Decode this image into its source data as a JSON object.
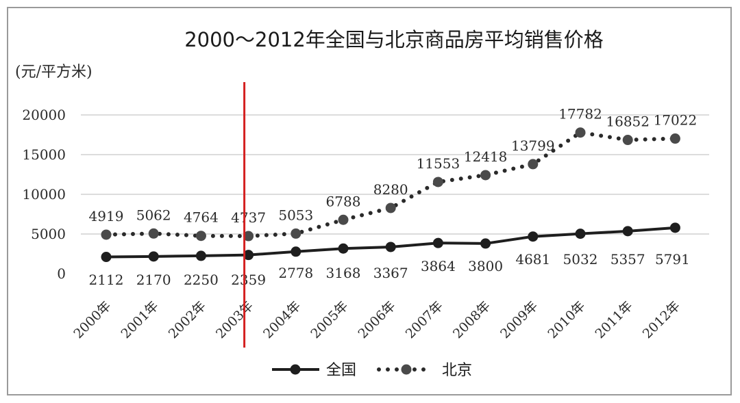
{
  "chart_data": {
    "type": "line",
    "title": "2000～2012年全国与北京商品房平均销售价格",
    "unit_label": "(元/平方米)",
    "categories": [
      "2000年",
      "2001年",
      "2002年",
      "2003年",
      "2004年",
      "2005年",
      "2006年",
      "2007年",
      "2008年",
      "2009年",
      "2010年",
      "2011年",
      "2012年"
    ],
    "y_ticks": [
      "0",
      "5000",
      "10000",
      "15000",
      "20000"
    ],
    "ylim": [
      0,
      20000
    ],
    "grid": true,
    "legend_position": "bottom-center",
    "series": [
      {
        "name": "全国",
        "style": "solid",
        "color": "#1e1e1e",
        "values": [
          2112,
          2170,
          2250,
          2359,
          2778,
          3168,
          3367,
          3864,
          3800,
          4681,
          5032,
          5357,
          5791
        ],
        "labels": [
          "2112",
          "2170",
          "2250",
          "2359",
          "2778",
          "3168",
          "3367",
          "3864",
          "3800",
          "4681",
          "5032",
          "5357",
          "5791"
        ]
      },
      {
        "name": "北京",
        "style": "dotted",
        "color": "#2a2a2a",
        "values": [
          4919,
          5062,
          4764,
          4737,
          5053,
          6788,
          8280,
          11553,
          12418,
          13799,
          17782,
          16852,
          17022
        ],
        "labels": [
          "4919",
          "5062",
          "4764",
          "4737",
          "5053",
          "6788",
          "8280",
          "11553",
          "12418",
          "13799",
          "17782",
          "16852",
          "17022"
        ]
      }
    ],
    "marker_line": {
      "category": "2003年",
      "color": "#d42020"
    }
  }
}
